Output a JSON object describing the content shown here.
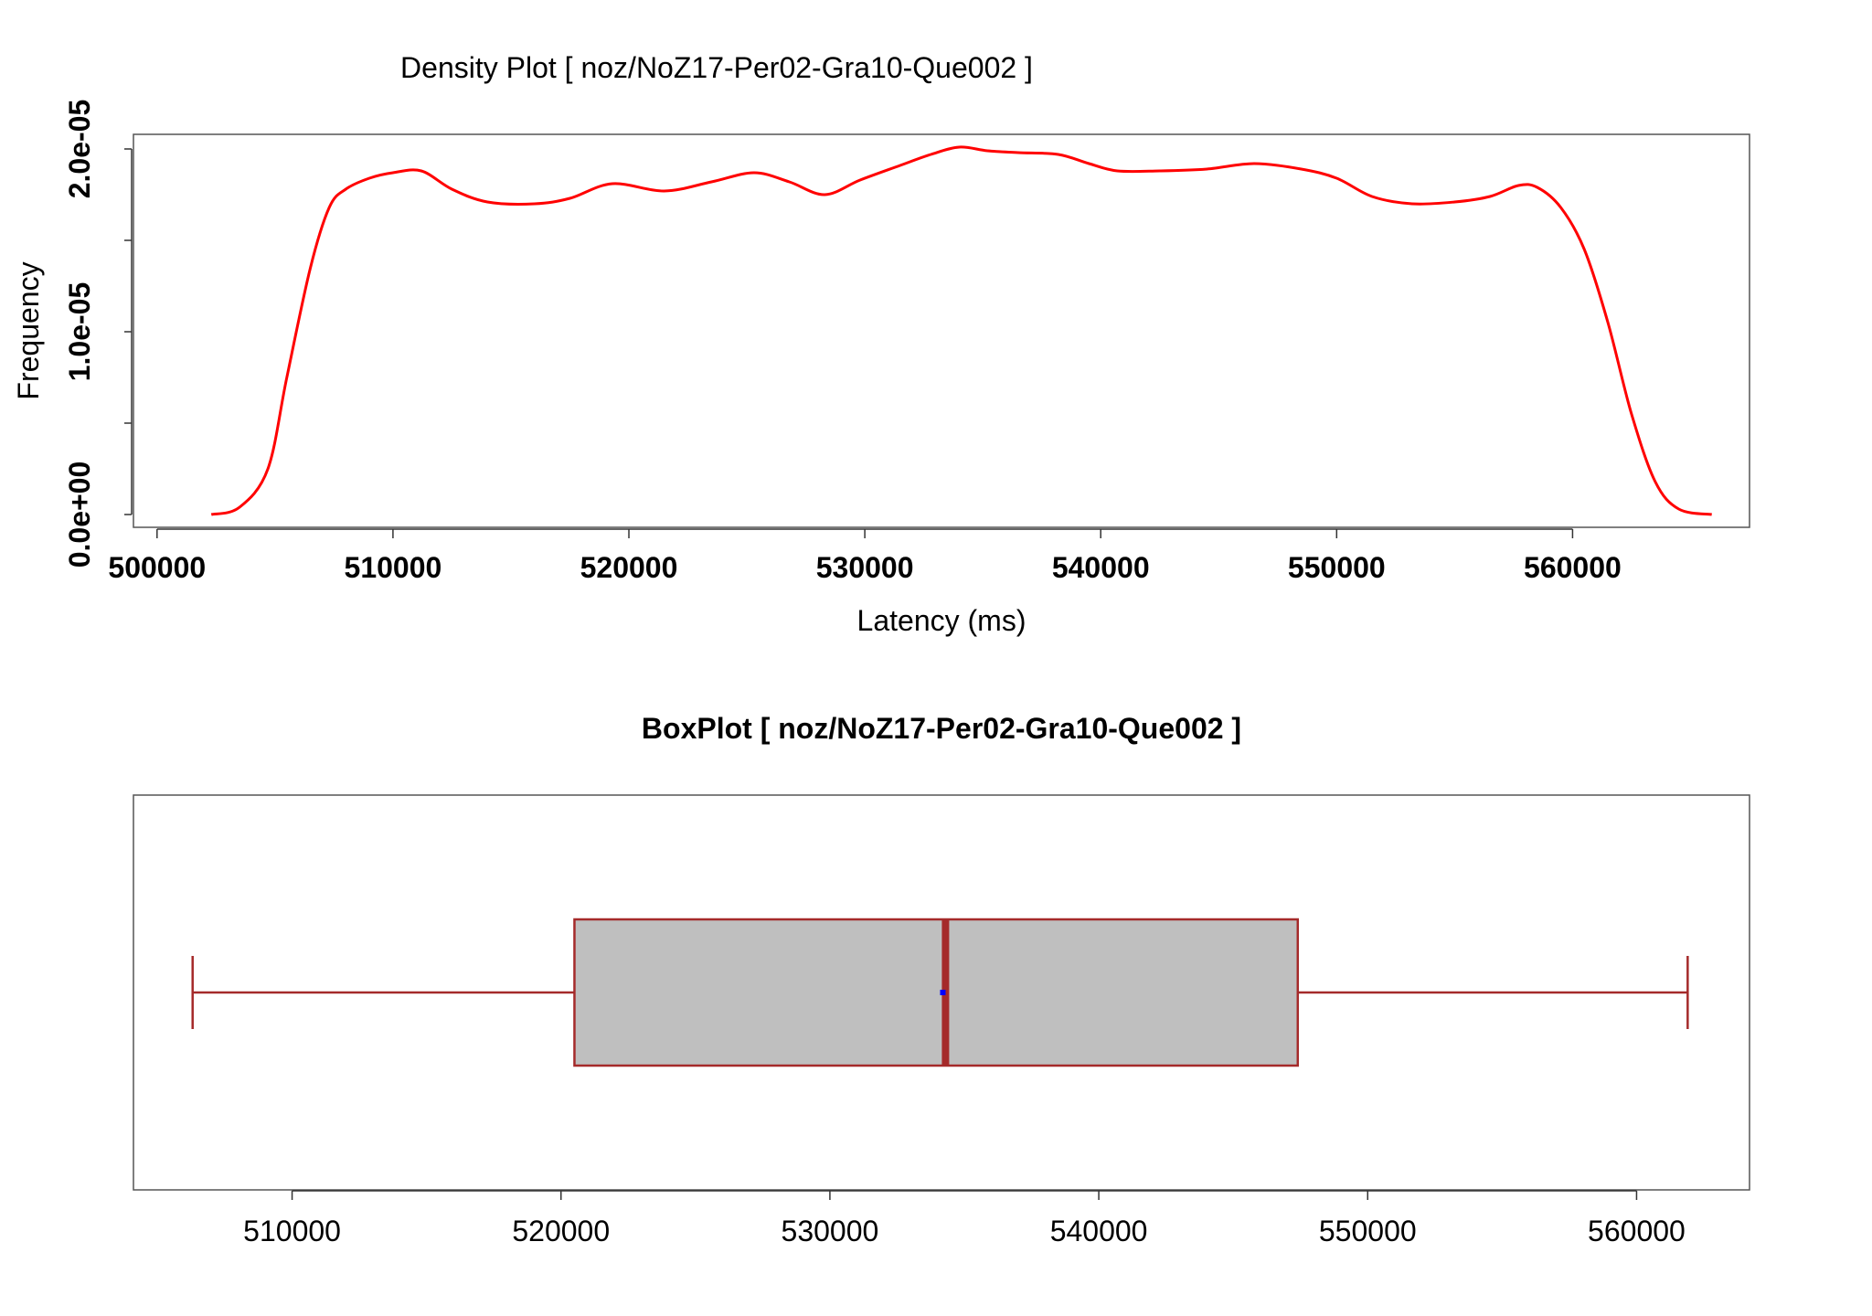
{
  "colors": {
    "density_line": "#ff0000",
    "box_fill": "#bfbfbf",
    "box_stroke": "#a52a2a",
    "mean_marker": "#0000ff",
    "frame": "#555555"
  },
  "chart_data": [
    {
      "type": "line",
      "title": "Density Plot [ noz/NoZ17-Per02-Gra10-Que002 ]",
      "xlabel": "Latency (ms)",
      "ylabel": "Frequency",
      "xlim": [
        499000,
        567500
      ],
      "ylim": [
        -7e-07,
        2.08e-05
      ],
      "xticks": [
        500000,
        510000,
        520000,
        530000,
        540000,
        550000,
        560000
      ],
      "xtick_labels": [
        "500000",
        "510000",
        "520000",
        "530000",
        "540000",
        "550000",
        "560000"
      ],
      "yticks": [
        0,
        5e-06,
        1e-05,
        1.5e-05,
        2e-05
      ],
      "ytick_labels": [
        "0.0e+00",
        "1.0e-05",
        "2.0e-05"
      ],
      "ytick_label_values": [
        0,
        1e-05,
        2e-05
      ],
      "grid": false,
      "series": [
        {
          "x": [
            502300,
            503500,
            504700,
            505500,
            506500,
            507300,
            508000,
            509000,
            510000,
            511200,
            512500,
            514000,
            516000,
            517500,
            519300,
            521500,
            523500,
            525300,
            526800,
            528300,
            529800,
            531500,
            532800,
            534000,
            535200,
            536500,
            538200,
            539500,
            540700,
            542500,
            544500,
            546500,
            548500,
            550000,
            551500,
            553200,
            555000,
            556500,
            557700,
            558500,
            559500,
            560500,
            561500,
            562500,
            563500,
            564500,
            565900
          ],
          "y": [
            0,
            4e-07,
            2.5e-06,
            7.5e-06,
            1.35e-05,
            1.68e-05,
            1.78e-05,
            1.84e-05,
            1.87e-05,
            1.88e-05,
            1.78e-05,
            1.71e-05,
            1.7e-05,
            1.73e-05,
            1.81e-05,
            1.77e-05,
            1.82e-05,
            1.87e-05,
            1.82e-05,
            1.75e-05,
            1.83e-05,
            1.91e-05,
            1.97e-05,
            2.01e-05,
            1.99e-05,
            1.98e-05,
            1.97e-05,
            1.92e-05,
            1.88e-05,
            1.88e-05,
            1.89e-05,
            1.92e-05,
            1.89e-05,
            1.84e-05,
            1.74e-05,
            1.7e-05,
            1.71e-05,
            1.74e-05,
            1.8e-05,
            1.79e-05,
            1.68e-05,
            1.45e-05,
            1.05e-05,
            5.5e-06,
            1.8e-06,
            3e-07,
            0
          ]
        }
      ]
    },
    {
      "type": "box",
      "title": "BoxPlot [ noz/NoZ17-Per02-Gra10-Que002 ]",
      "xlim": [
        504100,
        564200
      ],
      "xticks": [
        510000,
        520000,
        530000,
        540000,
        550000,
        560000
      ],
      "xtick_labels": [
        "510000",
        "520000",
        "530000",
        "540000",
        "550000",
        "560000"
      ],
      "whisker_low": 506300,
      "q1": 520500,
      "median": 534300,
      "q3": 547400,
      "whisker_high": 561900,
      "mean": 534200
    }
  ]
}
